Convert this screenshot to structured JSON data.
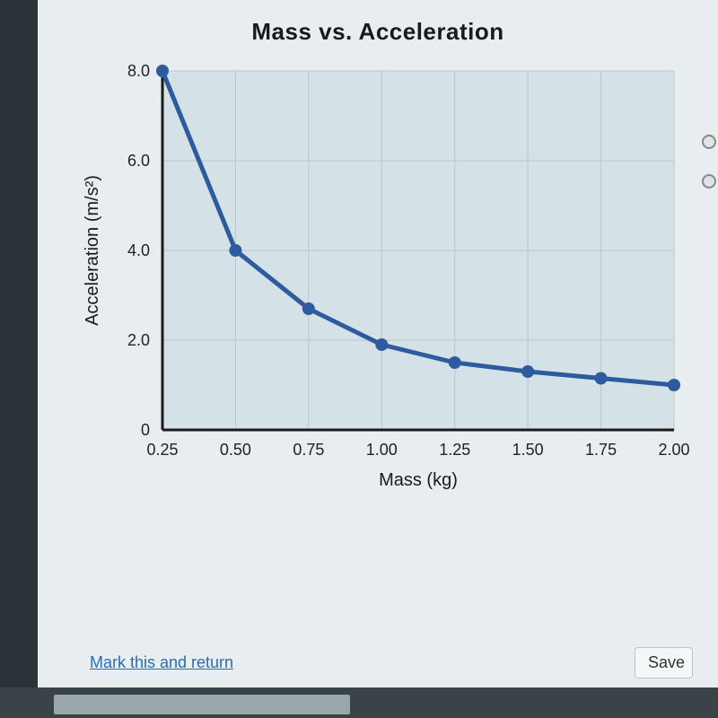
{
  "chart": {
    "type": "line",
    "title": "Mass vs. Acceleration",
    "title_fontsize": 26,
    "xlabel": "Mass (kg)",
    "ylabel": "Acceleration (m/s²)",
    "label_fontsize": 20,
    "x_ticks": [
      "0.25",
      "0.50",
      "0.75",
      "1.00",
      "1.25",
      "1.50",
      "1.75",
      "2.00"
    ],
    "y_ticks": [
      "0",
      "2.0",
      "4.0",
      "6.0",
      "8.0"
    ],
    "xlim": [
      0.25,
      2.0
    ],
    "ylim": [
      0,
      8.0
    ],
    "x_tick_step": 0.25,
    "y_tick_step": 2.0,
    "points": [
      {
        "x": 0.25,
        "y": 8.0
      },
      {
        "x": 0.5,
        "y": 4.0
      },
      {
        "x": 0.75,
        "y": 2.7
      },
      {
        "x": 1.0,
        "y": 1.9
      },
      {
        "x": 1.25,
        "y": 1.5
      },
      {
        "x": 1.5,
        "y": 1.3
      },
      {
        "x": 1.75,
        "y": 1.15
      },
      {
        "x": 2.0,
        "y": 1.0
      }
    ],
    "line_color": "#2e5b9e",
    "line_width": 5,
    "marker_radius": 7,
    "marker_color": "#2e5b9e",
    "plot_bg": "#d8e4e8",
    "plot_bg_inner": "#cfdde3",
    "grid_color": "#b8c8cc",
    "grid_width": 1,
    "axis_color": "#1a1a1a",
    "axis_width": 3,
    "tick_fontsize": 18,
    "tick_color": "#222"
  },
  "footer": {
    "link_text": "Mark this and return",
    "save_label": "Save"
  }
}
